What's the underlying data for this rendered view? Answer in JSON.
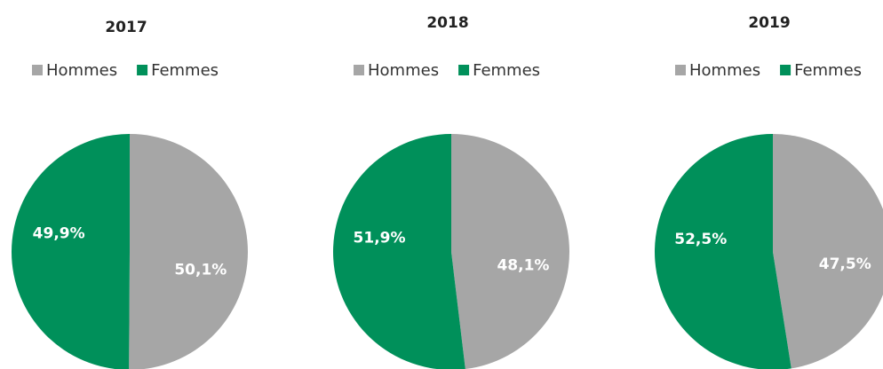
{
  "chart_data": [
    {
      "type": "pie",
      "title": "2017",
      "categories": [
        "Hommes",
        "Femmes"
      ],
      "values": [
        50.1,
        49.9
      ],
      "value_labels": [
        "50,1%",
        "49,9%"
      ],
      "colors": [
        "#a6a6a6",
        "#00905a"
      ]
    },
    {
      "type": "pie",
      "title": "2018",
      "categories": [
        "Hommes",
        "Femmes"
      ],
      "values": [
        48.1,
        51.9
      ],
      "value_labels": [
        "48,1%",
        "51,9%"
      ],
      "colors": [
        "#a6a6a6",
        "#00905a"
      ]
    },
    {
      "type": "pie",
      "title": "2019",
      "categories": [
        "Hommes",
        "Femmes"
      ],
      "values": [
        47.5,
        52.5
      ],
      "value_labels": [
        "47,5%",
        "52,5%"
      ],
      "colors": [
        "#a6a6a6",
        "#00905a"
      ]
    }
  ]
}
